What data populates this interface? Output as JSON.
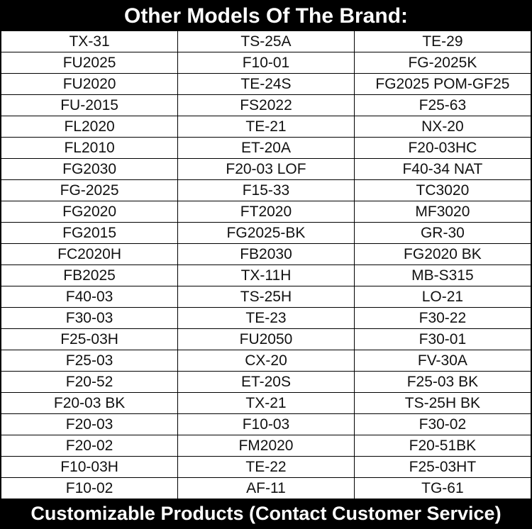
{
  "header": {
    "title": "Other Models Of The Brand:"
  },
  "table": {
    "rows": [
      [
        "TX-31",
        "TS-25A",
        "TE-29"
      ],
      [
        "FU2025",
        "F10-01",
        "FG-2025K"
      ],
      [
        "FU2020",
        "TE-24S",
        "FG2025 POM-GF25"
      ],
      [
        "FU-2015",
        "FS2022",
        "F25-63"
      ],
      [
        "FL2020",
        "TE-21",
        "NX-20"
      ],
      [
        "FL2010",
        "ET-20A",
        "F20-03HC"
      ],
      [
        "FG2030",
        "F20-03 LOF",
        "F40-34 NAT"
      ],
      [
        "FG-2025",
        "F15-33",
        "TC3020"
      ],
      [
        "FG2020",
        "FT2020",
        "MF3020"
      ],
      [
        "FG2015",
        "FG2025-BK",
        "GR-30"
      ],
      [
        "FC2020H",
        "FB2030",
        "FG2020 BK"
      ],
      [
        "FB2025",
        "TX-11H",
        "MB-S315"
      ],
      [
        "F40-03",
        "TS-25H",
        "LO-21"
      ],
      [
        "F30-03",
        "TE-23",
        "F30-22"
      ],
      [
        "F25-03H",
        "FU2050",
        "F30-01"
      ],
      [
        "F25-03",
        "CX-20",
        "FV-30A"
      ],
      [
        "F20-52",
        "ET-20S",
        "F25-03 BK"
      ],
      [
        "F20-03 BK",
        "TX-21",
        "TS-25H BK"
      ],
      [
        "F20-03",
        "F10-03",
        "F30-02"
      ],
      [
        "F20-02",
        "FM2020",
        "F20-51BK"
      ],
      [
        "F10-03H",
        "TE-22",
        "F25-03HT"
      ],
      [
        "F10-02",
        "AF-11",
        "TG-61"
      ]
    ]
  },
  "footer": {
    "text": "Customizable Products (Contact Customer Service)"
  }
}
